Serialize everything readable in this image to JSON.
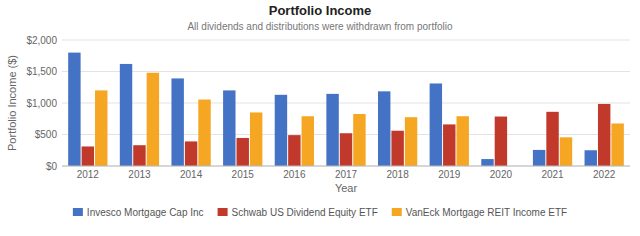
{
  "chart_data": {
    "type": "bar",
    "title": "Portfolio Income",
    "subtitle": "All dividends and distributions were withdrawn from portfolio",
    "xlabel": "Year",
    "ylabel": "Portfolio Income ($)",
    "categories": [
      "2012",
      "2013",
      "2014",
      "2015",
      "2016",
      "2017",
      "2018",
      "2019",
      "2020",
      "2021",
      "2022"
    ],
    "series": [
      {
        "name": "Invesco Mortgage Cap Inc",
        "color": "#4472C4",
        "values": [
          1800,
          1620,
          1390,
          1200,
          1130,
          1145,
          1185,
          1310,
          110,
          255,
          250
        ]
      },
      {
        "name": "Schwab US Dividend Equity ETF",
        "color": "#C0392B",
        "values": [
          310,
          330,
          390,
          445,
          490,
          520,
          560,
          660,
          785,
          860,
          985
        ]
      },
      {
        "name": "VanEck Mortgage REIT Income ETF",
        "color": "#F5A623",
        "values": [
          1200,
          1480,
          1055,
          850,
          790,
          825,
          775,
          790,
          0,
          455,
          675
        ]
      }
    ],
    "ylim": [
      0,
      2000
    ],
    "yticks": [
      {
        "value": 0,
        "label": "$0"
      },
      {
        "value": 500,
        "label": "$500"
      },
      {
        "value": 1000,
        "label": "$1,000"
      },
      {
        "value": 1500,
        "label": "$1,500"
      },
      {
        "value": 2000,
        "label": "$2,000"
      }
    ],
    "grid": true,
    "legend": "bottom"
  }
}
